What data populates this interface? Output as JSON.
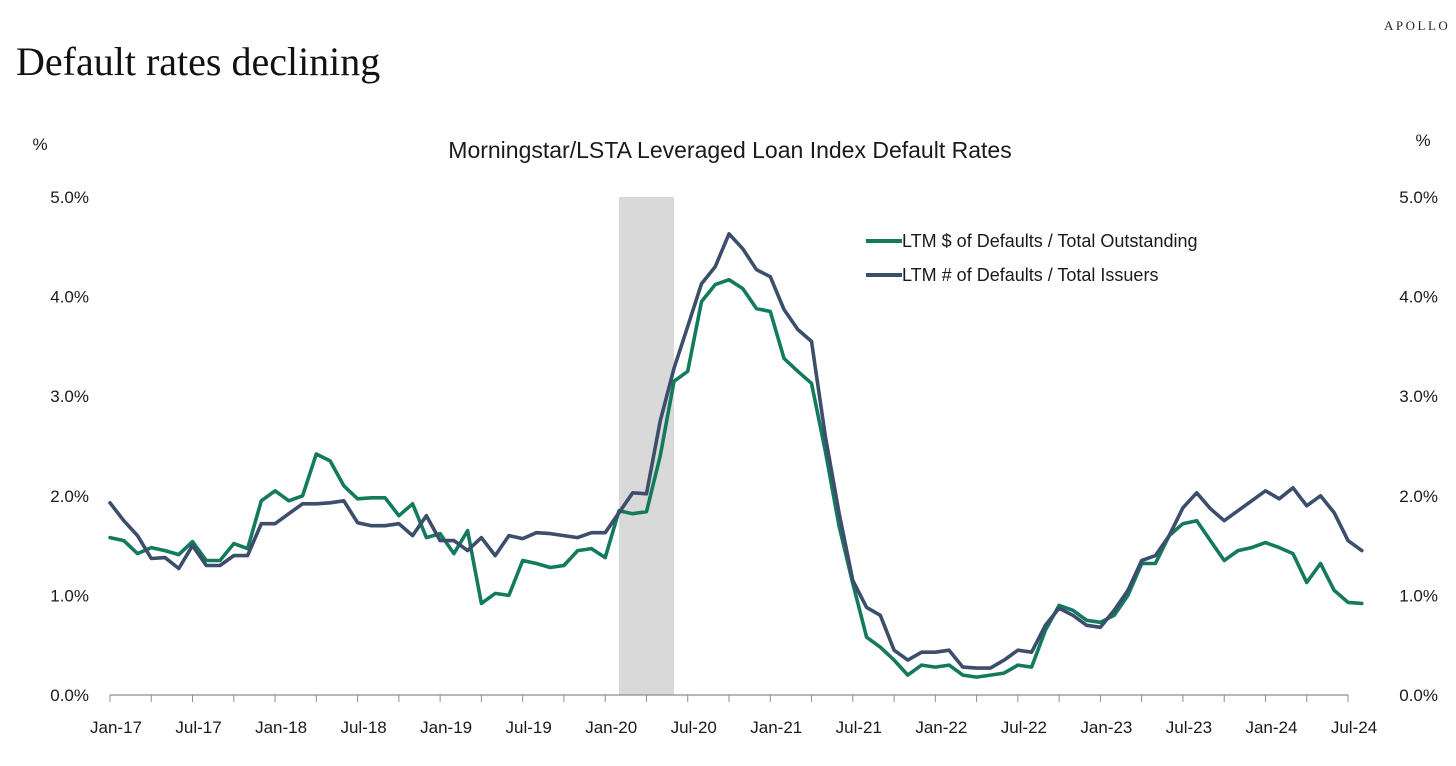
{
  "brand": "APOLLO",
  "headline": "Default rates declining",
  "chart_data": {
    "type": "line",
    "title": "Morningstar/LSTA Leveraged Loan Index Default Rates",
    "ylabel_left": "%",
    "ylabel_right": "%",
    "xlabel": "",
    "ylim": [
      0,
      5
    ],
    "yticks": [
      "0.0%",
      "1.0%",
      "2.0%",
      "3.0%",
      "4.0%",
      "5.0%"
    ],
    "x_start": "Jan-17",
    "x_end": "Jul-24",
    "x_tick_labels": [
      "Jan-17",
      "Jul-17",
      "Jan-18",
      "Jul-18",
      "Jan-19",
      "Jul-19",
      "Jan-20",
      "Jul-20",
      "Jan-21",
      "Jul-21",
      "Jan-22",
      "Jul-22",
      "Jan-23",
      "Jul-23",
      "Jan-24",
      "Jul-24"
    ],
    "shaded_region": [
      "Feb-20",
      "Jun-20"
    ],
    "grid": false,
    "legend_position": "top-right",
    "series": [
      {
        "name": "LTM $ of Defaults / Total Outstanding",
        "color": "#137a5e",
        "points": [
          [
            "Jan-17",
            1.58
          ],
          [
            "Feb-17",
            1.55
          ],
          [
            "Mar-17",
            1.42
          ],
          [
            "Apr-17",
            1.48
          ],
          [
            "May-17",
            1.45
          ],
          [
            "Jun-17",
            1.41
          ],
          [
            "Jul-17",
            1.54
          ],
          [
            "Aug-17",
            1.35
          ],
          [
            "Sep-17",
            1.35
          ],
          [
            "Oct-17",
            1.52
          ],
          [
            "Nov-17",
            1.47
          ],
          [
            "Dec-17",
            1.95
          ],
          [
            "Jan-18",
            2.05
          ],
          [
            "Feb-18",
            1.95
          ],
          [
            "Mar-18",
            2.0
          ],
          [
            "Apr-18",
            2.42
          ],
          [
            "May-18",
            2.35
          ],
          [
            "Jun-18",
            2.1
          ],
          [
            "Jul-18",
            1.97
          ],
          [
            "Aug-18",
            1.98
          ],
          [
            "Sep-18",
            1.98
          ],
          [
            "Oct-18",
            1.8
          ],
          [
            "Nov-18",
            1.92
          ],
          [
            "Dec-18",
            1.58
          ],
          [
            "Jan-19",
            1.62
          ],
          [
            "Feb-19",
            1.42
          ],
          [
            "Mar-19",
            1.65
          ],
          [
            "Apr-19",
            0.92
          ],
          [
            "May-19",
            1.02
          ],
          [
            "Jun-19",
            1.0
          ],
          [
            "Jul-19",
            1.35
          ],
          [
            "Aug-19",
            1.32
          ],
          [
            "Sep-19",
            1.28
          ],
          [
            "Oct-19",
            1.3
          ],
          [
            "Nov-19",
            1.45
          ],
          [
            "Dec-19",
            1.47
          ],
          [
            "Jan-20",
            1.38
          ],
          [
            "Feb-20",
            1.85
          ],
          [
            "Mar-20",
            1.82
          ],
          [
            "Apr-20",
            1.84
          ],
          [
            "May-20",
            2.4
          ],
          [
            "Jun-20",
            3.15
          ],
          [
            "Jul-20",
            3.25
          ],
          [
            "Aug-20",
            3.95
          ],
          [
            "Sep-20",
            4.12
          ],
          [
            "Oct-20",
            4.17
          ],
          [
            "Nov-20",
            4.08
          ],
          [
            "Dec-20",
            3.88
          ],
          [
            "Jan-21",
            3.85
          ],
          [
            "Feb-21",
            3.38
          ],
          [
            "Mar-21",
            3.25
          ],
          [
            "Apr-21",
            3.13
          ],
          [
            "May-21",
            2.45
          ],
          [
            "Jun-21",
            1.7
          ],
          [
            "Jul-21",
            1.12
          ],
          [
            "Aug-21",
            0.58
          ],
          [
            "Sep-21",
            0.48
          ],
          [
            "Oct-21",
            0.35
          ],
          [
            "Nov-21",
            0.2
          ],
          [
            "Dec-21",
            0.3
          ],
          [
            "Jan-22",
            0.28
          ],
          [
            "Feb-22",
            0.3
          ],
          [
            "Mar-22",
            0.2
          ],
          [
            "Apr-22",
            0.18
          ],
          [
            "May-22",
            0.2
          ],
          [
            "Jun-22",
            0.22
          ],
          [
            "Jul-22",
            0.3
          ],
          [
            "Aug-22",
            0.28
          ],
          [
            "Sep-22",
            0.65
          ],
          [
            "Oct-22",
            0.9
          ],
          [
            "Nov-22",
            0.85
          ],
          [
            "Dec-22",
            0.75
          ],
          [
            "Jan-23",
            0.73
          ],
          [
            "Feb-23",
            0.8
          ],
          [
            "Mar-23",
            1.0
          ],
          [
            "Apr-23",
            1.32
          ],
          [
            "May-23",
            1.32
          ],
          [
            "Jun-23",
            1.6
          ],
          [
            "Jul-23",
            1.72
          ],
          [
            "Aug-23",
            1.75
          ],
          [
            "Sep-23",
            1.55
          ],
          [
            "Oct-23",
            1.35
          ],
          [
            "Nov-23",
            1.45
          ],
          [
            "Dec-23",
            1.48
          ],
          [
            "Jan-24",
            1.53
          ],
          [
            "Feb-24",
            1.48
          ],
          [
            "Mar-24",
            1.42
          ],
          [
            "Apr-24",
            1.13
          ],
          [
            "May-24",
            1.32
          ],
          [
            "Jun-24",
            1.05
          ],
          [
            "Jul-24",
            0.93
          ],
          [
            "Aug-24",
            0.92
          ]
        ]
      },
      {
        "name": "LTM # of Defaults / Total Issuers",
        "color": "#3c4e6b",
        "points": [
          [
            "Jan-17",
            1.93
          ],
          [
            "Feb-17",
            1.75
          ],
          [
            "Mar-17",
            1.6
          ],
          [
            "Apr-17",
            1.37
          ],
          [
            "May-17",
            1.38
          ],
          [
            "Jun-17",
            1.27
          ],
          [
            "Jul-17",
            1.5
          ],
          [
            "Aug-17",
            1.3
          ],
          [
            "Sep-17",
            1.3
          ],
          [
            "Oct-17",
            1.4
          ],
          [
            "Nov-17",
            1.4
          ],
          [
            "Dec-17",
            1.72
          ],
          [
            "Jan-18",
            1.72
          ],
          [
            "Feb-18",
            1.82
          ],
          [
            "Mar-18",
            1.92
          ],
          [
            "Apr-18",
            1.92
          ],
          [
            "May-18",
            1.93
          ],
          [
            "Jun-18",
            1.95
          ],
          [
            "Jul-18",
            1.73
          ],
          [
            "Aug-18",
            1.7
          ],
          [
            "Sep-18",
            1.7
          ],
          [
            "Oct-18",
            1.72
          ],
          [
            "Nov-18",
            1.6
          ],
          [
            "Dec-18",
            1.8
          ],
          [
            "Jan-19",
            1.55
          ],
          [
            "Feb-19",
            1.55
          ],
          [
            "Mar-19",
            1.45
          ],
          [
            "Apr-19",
            1.58
          ],
          [
            "May-19",
            1.4
          ],
          [
            "Jun-19",
            1.6
          ],
          [
            "Jul-19",
            1.57
          ],
          [
            "Aug-19",
            1.63
          ],
          [
            "Sep-19",
            1.62
          ],
          [
            "Oct-19",
            1.6
          ],
          [
            "Nov-19",
            1.58
          ],
          [
            "Dec-19",
            1.63
          ],
          [
            "Jan-20",
            1.63
          ],
          [
            "Feb-20",
            1.83
          ],
          [
            "Mar-20",
            2.03
          ],
          [
            "Apr-20",
            2.02
          ],
          [
            "May-20",
            2.75
          ],
          [
            "Jun-20",
            3.28
          ],
          [
            "Jul-20",
            3.7
          ],
          [
            "Aug-20",
            4.13
          ],
          [
            "Sep-20",
            4.3
          ],
          [
            "Oct-20",
            4.63
          ],
          [
            "Nov-20",
            4.48
          ],
          [
            "Dec-20",
            4.27
          ],
          [
            "Jan-21",
            4.2
          ],
          [
            "Feb-21",
            3.87
          ],
          [
            "Mar-21",
            3.67
          ],
          [
            "Apr-21",
            3.55
          ],
          [
            "May-21",
            2.6
          ],
          [
            "Jun-21",
            1.83
          ],
          [
            "Jul-21",
            1.15
          ],
          [
            "Aug-21",
            0.88
          ],
          [
            "Sep-21",
            0.8
          ],
          [
            "Oct-21",
            0.45
          ],
          [
            "Nov-21",
            0.35
          ],
          [
            "Dec-21",
            0.43
          ],
          [
            "Jan-22",
            0.43
          ],
          [
            "Feb-22",
            0.45
          ],
          [
            "Mar-22",
            0.28
          ],
          [
            "Apr-22",
            0.27
          ],
          [
            "May-22",
            0.27
          ],
          [
            "Jun-22",
            0.35
          ],
          [
            "Jul-22",
            0.45
          ],
          [
            "Aug-22",
            0.43
          ],
          [
            "Sep-22",
            0.7
          ],
          [
            "Oct-22",
            0.87
          ],
          [
            "Nov-22",
            0.8
          ],
          [
            "Dec-22",
            0.7
          ],
          [
            "Jan-23",
            0.68
          ],
          [
            "Feb-23",
            0.85
          ],
          [
            "Mar-23",
            1.05
          ],
          [
            "Apr-23",
            1.35
          ],
          [
            "May-23",
            1.4
          ],
          [
            "Jun-23",
            1.6
          ],
          [
            "Jul-23",
            1.88
          ],
          [
            "Aug-23",
            2.03
          ],
          [
            "Sep-23",
            1.87
          ],
          [
            "Oct-23",
            1.75
          ],
          [
            "Nov-23",
            1.85
          ],
          [
            "Dec-23",
            1.95
          ],
          [
            "Jan-24",
            2.05
          ],
          [
            "Feb-24",
            1.97
          ],
          [
            "Mar-24",
            2.08
          ],
          [
            "Apr-24",
            1.9
          ],
          [
            "May-24",
            2.0
          ],
          [
            "Jun-24",
            1.83
          ],
          [
            "Jul-24",
            1.55
          ],
          [
            "Aug-24",
            1.45
          ]
        ]
      }
    ]
  }
}
